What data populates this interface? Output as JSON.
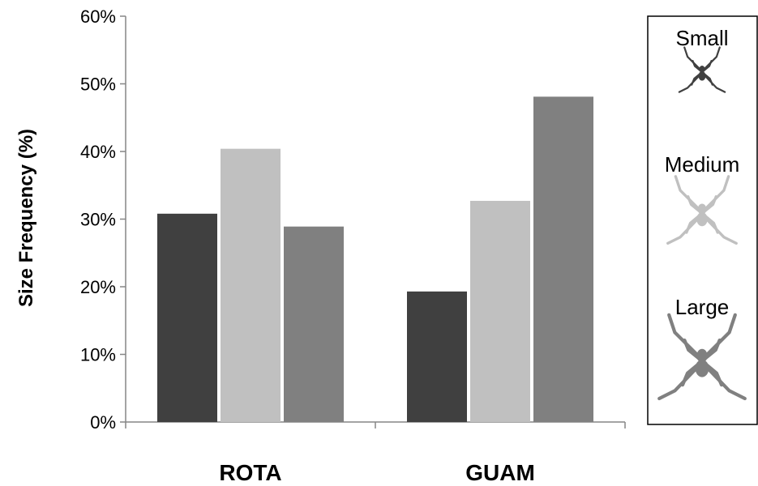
{
  "chart_data": {
    "type": "bar",
    "title": "",
    "xlabel": "",
    "ylabel": "Size Frequency (%)",
    "categories": [
      "ROTA",
      "GUAM"
    ],
    "series": [
      {
        "name": "Small",
        "color": "#404040",
        "values": [
          30.8,
          19.3
        ]
      },
      {
        "name": "Medium",
        "color": "#c0c0c0",
        "values": [
          40.4,
          32.7
        ]
      },
      {
        "name": "Large",
        "color": "#808080",
        "values": [
          28.9,
          48.1
        ]
      }
    ],
    "ylim": [
      0,
      60
    ],
    "yticks": [
      0,
      10,
      20,
      30,
      40,
      50,
      60
    ],
    "ytick_labels": [
      "0%",
      "10%",
      "20%",
      "30%",
      "40%",
      "50%",
      "60%"
    ],
    "grid": false,
    "legend": {
      "placement": "right",
      "style": "boxed",
      "entries": [
        {
          "label": "Small",
          "icon": "spider-icon"
        },
        {
          "label": "Medium",
          "icon": "spider-icon"
        },
        {
          "label": "Large",
          "icon": "spider-icon"
        }
      ]
    }
  }
}
